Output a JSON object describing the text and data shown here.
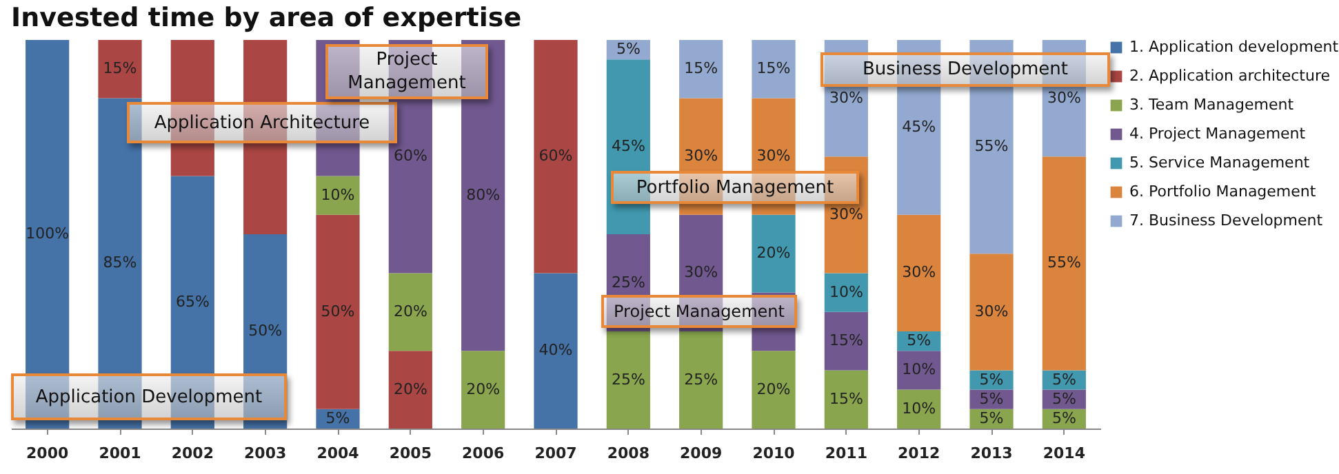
{
  "chart_data": {
    "type": "bar",
    "title": "Invested time by area of expertise",
    "stacked": true,
    "legend": "right",
    "grid": false,
    "tick_labels": "x",
    "categories": [
      "2000",
      "2001",
      "2002",
      "2003",
      "2004",
      "2005",
      "2006",
      "2007",
      "2008",
      "2009",
      "2010",
      "2011",
      "2012",
      "2013",
      "2014"
    ],
    "series": [
      {
        "name": "1. Application development",
        "color": "#4572a7",
        "values": [
          100,
          85,
          65,
          50,
          5,
          null,
          null,
          40,
          null,
          null,
          null,
          null,
          null,
          null,
          null
        ],
        "value_labels": [
          "100%",
          "85%",
          "65%",
          "50%",
          "5%",
          null,
          null,
          "40%",
          null,
          null,
          null,
          null,
          null,
          null,
          null
        ]
      },
      {
        "name": "2. Application architecture",
        "color": "#aa4643",
        "values": [
          null,
          15,
          35,
          50,
          50,
          20,
          null,
          60,
          null,
          null,
          null,
          null,
          null,
          null,
          null
        ],
        "value_labels": [
          null,
          "15%",
          null,
          null,
          "50%",
          "20%",
          null,
          "60%",
          null,
          null,
          null,
          null,
          null,
          null,
          null
        ]
      },
      {
        "name": "3. Team Management",
        "color": "#89a54e",
        "values": [
          null,
          null,
          null,
          null,
          10,
          20,
          20,
          null,
          25,
          25,
          20,
          15,
          10,
          5,
          5
        ],
        "value_labels": [
          null,
          null,
          null,
          null,
          "10%",
          "20%",
          "20%",
          null,
          "25%",
          "25%",
          "20%",
          "15%",
          "10%",
          "5%",
          "5%"
        ]
      },
      {
        "name": "4. Project Management",
        "color": "#71588f",
        "values": [
          null,
          null,
          null,
          null,
          35,
          60,
          80,
          null,
          25,
          30,
          15,
          15,
          10,
          5,
          5
        ],
        "value_labels": [
          null,
          null,
          null,
          null,
          null,
          "60%",
          "80%",
          null,
          "25%",
          "30%",
          null,
          "15%",
          "10%",
          "5%",
          "5%"
        ]
      },
      {
        "name": "5. Service Management",
        "color": "#4198af",
        "values": [
          null,
          null,
          null,
          null,
          null,
          null,
          null,
          null,
          45,
          null,
          20,
          10,
          5,
          5,
          5
        ],
        "value_labels": [
          null,
          null,
          null,
          null,
          null,
          null,
          null,
          null,
          "45%",
          null,
          "20%",
          "10%",
          "5%",
          "5%",
          "5%"
        ]
      },
      {
        "name": "6. Portfolio Management",
        "color": "#db843d",
        "values": [
          null,
          null,
          null,
          null,
          null,
          null,
          null,
          null,
          null,
          30,
          30,
          30,
          30,
          30,
          55
        ],
        "value_labels": [
          null,
          null,
          null,
          null,
          null,
          null,
          null,
          null,
          null,
          "30%",
          "30%",
          "30%",
          "30%",
          "30%",
          "55%"
        ]
      },
      {
        "name": "7. Business Development",
        "color": "#93a9cf",
        "values": [
          null,
          null,
          null,
          null,
          null,
          null,
          null,
          null,
          5,
          15,
          15,
          30,
          45,
          55,
          30
        ],
        "value_labels": [
          null,
          null,
          null,
          null,
          null,
          null,
          null,
          null,
          "5%",
          "15%",
          "15%",
          "30%",
          "45%",
          "55%",
          "30%"
        ]
      }
    ],
    "annotations": [
      "Application Development",
      "Application Architecture",
      "Project Management",
      "Business Development",
      "Portfolio Management",
      "Project Management"
    ]
  }
}
